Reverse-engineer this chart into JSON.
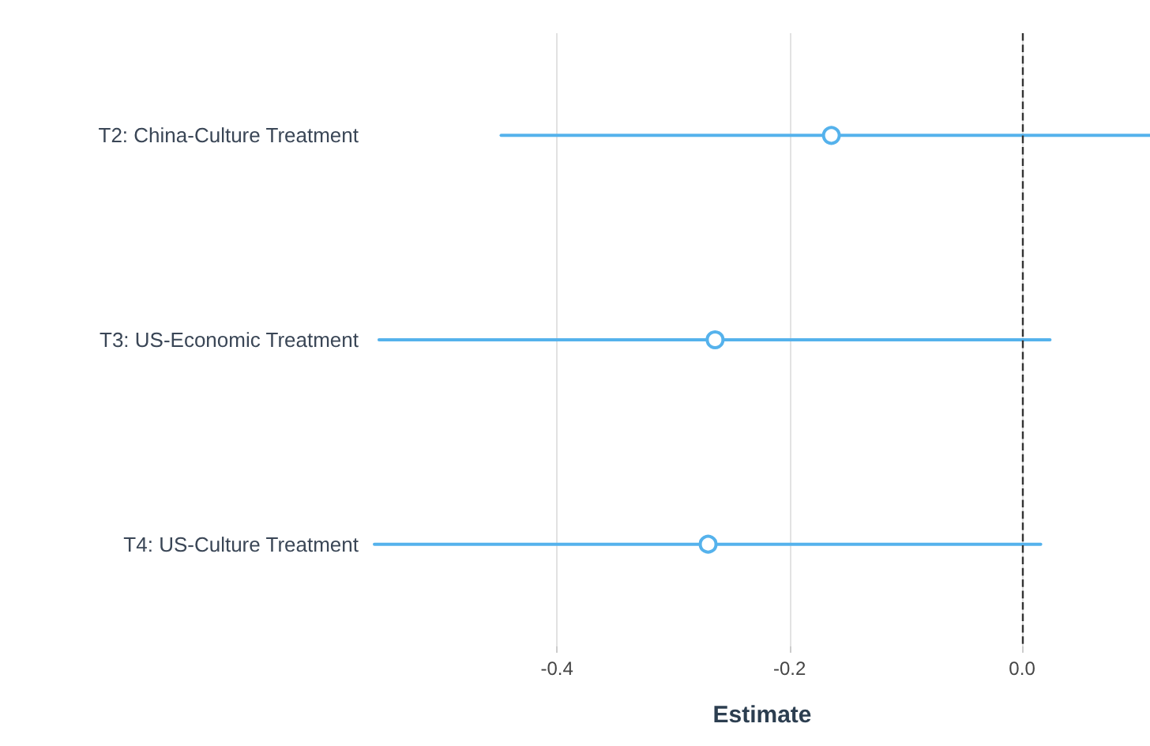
{
  "chart_data": {
    "type": "scatter",
    "orientation": "horizontal",
    "categories": [
      "T2: China-Culture Treatment",
      "T3: US-Economic Treatment",
      "T4: US-Culture Treatment"
    ],
    "series": [
      {
        "color": "#55b2ec",
        "values": [
          -0.164,
          -0.264,
          -0.27
        ],
        "errors": [
          [
            -0.448,
            0.11
          ],
          [
            -0.553,
            0.024
          ],
          [
            -0.557,
            0.016
          ]
        ]
      }
    ],
    "marker": "circle",
    "xlabel": "Estimate",
    "xlim": [
      -0.557,
      0.11
    ],
    "xticks": [
      -0.4,
      -0.2,
      {
        "value": 0,
        "label": "0.0"
      }
    ],
    "grid": "x",
    "ref_lines": [
      {
        "axis": "x",
        "value": 0,
        "line_style": "dashed",
        "color": "#333333"
      }
    ]
  }
}
